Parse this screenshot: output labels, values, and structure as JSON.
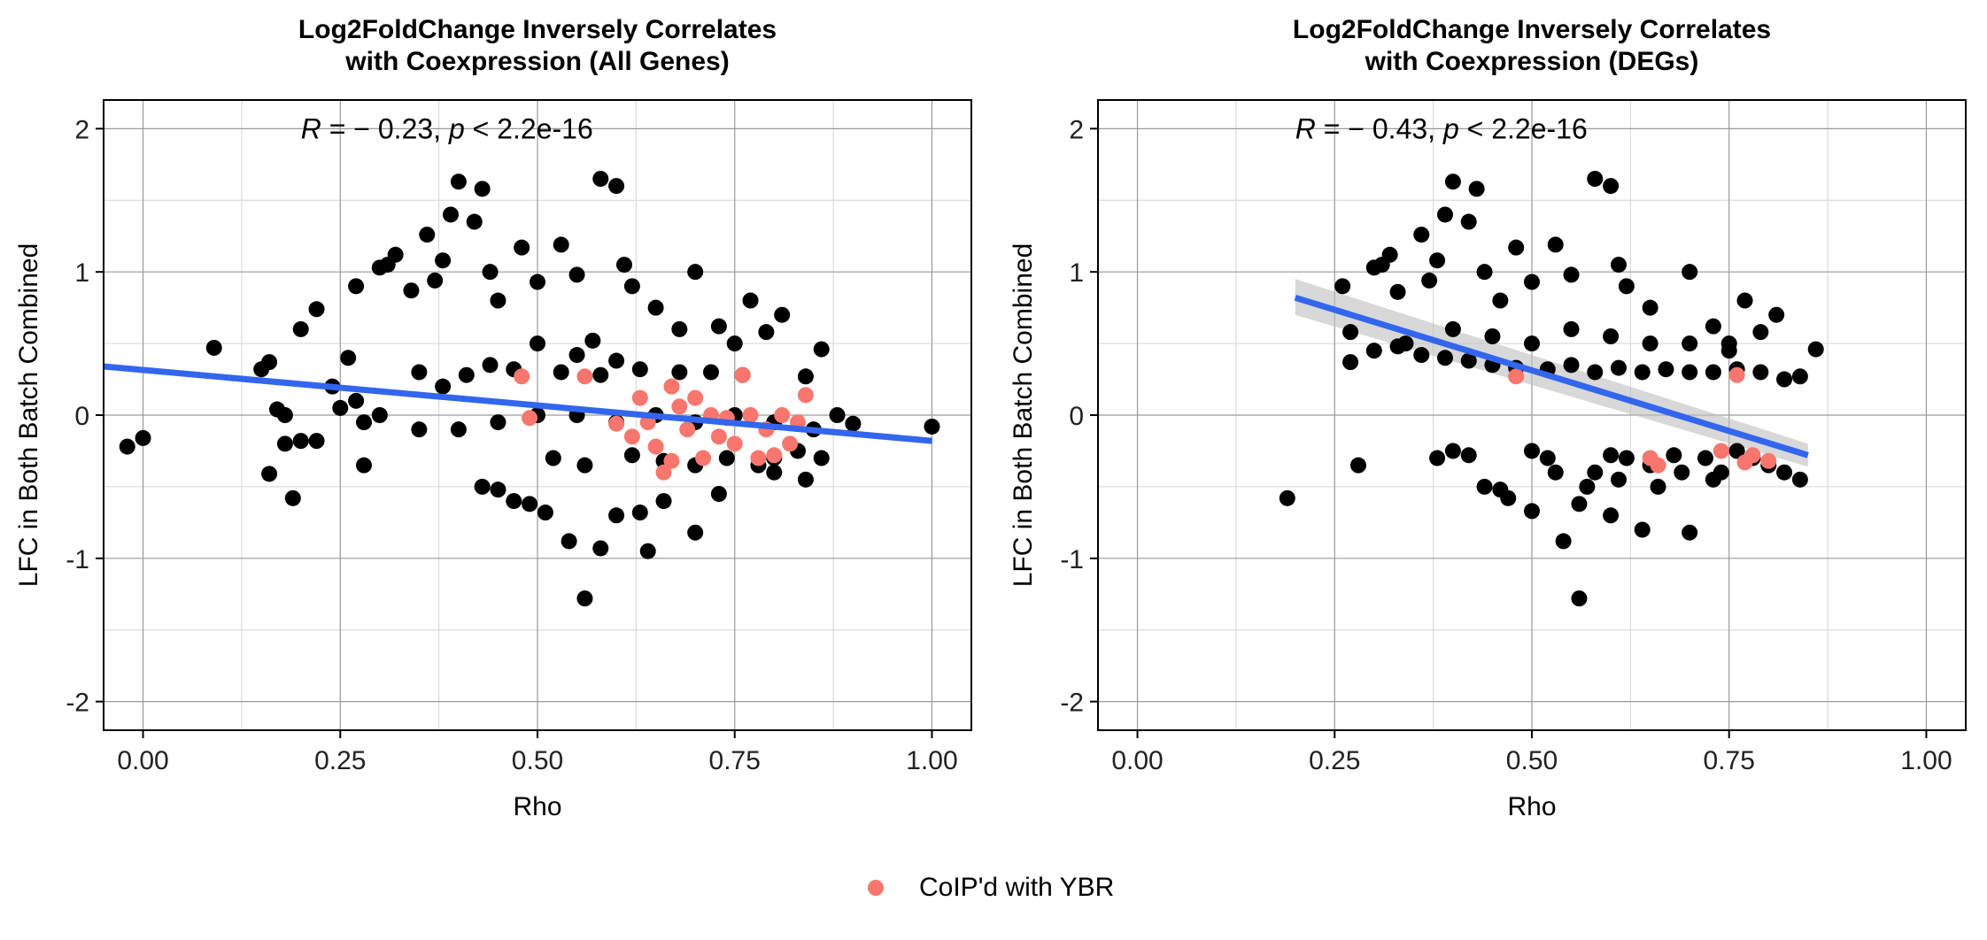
{
  "colors": {
    "point": "#000000",
    "highlight": "#F8766D",
    "fit_line": "#3366EE",
    "confidence_band": "#BEBEBE",
    "grid_major": "#9A9A9A",
    "grid_minor": "#D4D4D4"
  },
  "legend": {
    "label": "CoIP'd with YBR",
    "marker": "filled-circle"
  },
  "chart_data": [
    {
      "type": "scatter",
      "title_line1": "Log2FoldChange Inversely Correlates",
      "title_line2": "with Coexpression (All Genes)",
      "xlabel": "Rho",
      "ylabel": "LFC in Both Batch Combined",
      "xlim": [
        -0.05,
        1.05
      ],
      "ylim": [
        -2.2,
        2.2
      ],
      "x_ticks": [
        0.0,
        0.25,
        0.5,
        0.75,
        1.0
      ],
      "x_tick_labels": [
        "0.00",
        "0.25",
        "0.50",
        "0.75",
        "1.00"
      ],
      "y_ticks": [
        -2,
        -1,
        0,
        1,
        2
      ],
      "y_tick_labels": [
        "-2",
        "-1",
        "0",
        "1",
        "2"
      ],
      "grid": true,
      "annotation": {
        "r_symbol": "R",
        "r_text": " = − 0.23, ",
        "p_symbol": "p",
        "p_text": " < 2.2e-16",
        "x": 0.2,
        "y": 2.0
      },
      "fit_line": {
        "x": [
          -0.05,
          1.0
        ],
        "y": [
          0.34,
          -0.18
        ]
      },
      "confidence_band": null,
      "series": [
        {
          "name": "",
          "color": "#000000",
          "points": [
            [
              -0.02,
              -0.22
            ],
            [
              0.0,
              -0.16
            ],
            [
              0.09,
              0.47
            ],
            [
              0.15,
              0.32
            ],
            [
              0.16,
              0.37
            ],
            [
              0.17,
              0.04
            ],
            [
              0.18,
              0.0
            ],
            [
              0.18,
              -0.2
            ],
            [
              0.16,
              -0.41
            ],
            [
              0.19,
              -0.58
            ],
            [
              0.2,
              -0.18
            ],
            [
              0.2,
              0.6
            ],
            [
              0.22,
              0.74
            ],
            [
              0.22,
              -0.18
            ],
            [
              0.27,
              0.9
            ],
            [
              0.28,
              -0.35
            ],
            [
              0.3,
              1.03
            ],
            [
              0.31,
              1.05
            ],
            [
              0.32,
              1.12
            ],
            [
              0.34,
              0.87
            ],
            [
              0.36,
              1.26
            ],
            [
              0.37,
              0.94
            ],
            [
              0.38,
              1.08
            ],
            [
              0.39,
              1.4
            ],
            [
              0.4,
              1.63
            ],
            [
              0.42,
              1.35
            ],
            [
              0.43,
              1.58
            ],
            [
              0.44,
              1.0
            ],
            [
              0.45,
              0.8
            ],
            [
              0.48,
              1.17
            ],
            [
              0.5,
              0.93
            ],
            [
              0.53,
              1.19
            ],
            [
              0.55,
              0.98
            ],
            [
              0.57,
              0.52
            ],
            [
              0.58,
              1.65
            ],
            [
              0.6,
              1.6
            ],
            [
              0.61,
              1.05
            ],
            [
              0.62,
              0.9
            ],
            [
              0.65,
              0.75
            ],
            [
              0.68,
              0.6
            ],
            [
              0.7,
              1.0
            ],
            [
              0.73,
              0.62
            ],
            [
              0.75,
              0.5
            ],
            [
              0.77,
              0.8
            ],
            [
              0.79,
              0.58
            ],
            [
              0.81,
              0.7
            ],
            [
              0.84,
              0.27
            ],
            [
              0.86,
              0.46
            ],
            [
              0.88,
              0.0
            ],
            [
              0.9,
              -0.06
            ],
            [
              1.0,
              -0.08
            ],
            [
              0.43,
              -0.5
            ],
            [
              0.45,
              -0.52
            ],
            [
              0.47,
              -0.6
            ],
            [
              0.49,
              -0.62
            ],
            [
              0.51,
              -0.68
            ],
            [
              0.54,
              -0.88
            ],
            [
              0.56,
              -1.28
            ],
            [
              0.58,
              -0.93
            ],
            [
              0.6,
              -0.7
            ],
            [
              0.63,
              -0.68
            ],
            [
              0.64,
              -0.95
            ],
            [
              0.66,
              -0.6
            ],
            [
              0.7,
              -0.82
            ],
            [
              0.73,
              -0.55
            ],
            [
              0.8,
              -0.4
            ],
            [
              0.84,
              -0.45
            ],
            [
              0.86,
              -0.3
            ],
            [
              0.5,
              0.5
            ],
            [
              0.55,
              0.42
            ],
            [
              0.6,
              0.38
            ],
            [
              0.52,
              -0.3
            ],
            [
              0.56,
              -0.35
            ],
            [
              0.62,
              -0.28
            ],
            [
              0.66,
              -0.32
            ],
            [
              0.7,
              -0.35
            ],
            [
              0.74,
              -0.3
            ],
            [
              0.78,
              -0.35
            ],
            [
              0.8,
              -0.3
            ],
            [
              0.83,
              -0.25
            ],
            [
              0.85,
              -0.1
            ],
            [
              0.35,
              0.3
            ],
            [
              0.38,
              0.2
            ],
            [
              0.41,
              0.28
            ],
            [
              0.44,
              0.35
            ],
            [
              0.47,
              0.32
            ],
            [
              0.53,
              0.3
            ],
            [
              0.58,
              0.28
            ],
            [
              0.63,
              0.32
            ],
            [
              0.68,
              0.3
            ],
            [
              0.72,
              0.3
            ],
            [
              0.76,
              0.28
            ],
            [
              0.3,
              0.0
            ],
            [
              0.35,
              -0.1
            ],
            [
              0.4,
              -0.1
            ],
            [
              0.45,
              -0.05
            ],
            [
              0.5,
              0.0
            ],
            [
              0.55,
              0.0
            ],
            [
              0.6,
              -0.05
            ],
            [
              0.65,
              0.0
            ],
            [
              0.7,
              -0.05
            ],
            [
              0.75,
              0.0
            ],
            [
              0.8,
              -0.05
            ],
            [
              0.26,
              0.4
            ],
            [
              0.27,
              0.1
            ],
            [
              0.28,
              -0.05
            ],
            [
              0.25,
              0.05
            ],
            [
              0.24,
              0.2
            ]
          ]
        },
        {
          "name": "CoIP'd with YBR",
          "color": "#F8766D",
          "points": [
            [
              0.48,
              0.27
            ],
            [
              0.49,
              -0.02
            ],
            [
              0.56,
              0.27
            ],
            [
              0.6,
              -0.06
            ],
            [
              0.62,
              -0.15
            ],
            [
              0.63,
              0.12
            ],
            [
              0.64,
              -0.05
            ],
            [
              0.65,
              -0.22
            ],
            [
              0.66,
              -0.4
            ],
            [
              0.67,
              0.2
            ],
            [
              0.67,
              -0.32
            ],
            [
              0.68,
              0.06
            ],
            [
              0.69,
              -0.1
            ],
            [
              0.7,
              0.12
            ],
            [
              0.71,
              -0.3
            ],
            [
              0.72,
              0.0
            ],
            [
              0.73,
              -0.15
            ],
            [
              0.74,
              -0.02
            ],
            [
              0.75,
              -0.2
            ],
            [
              0.76,
              0.28
            ],
            [
              0.77,
              0.0
            ],
            [
              0.78,
              -0.3
            ],
            [
              0.79,
              -0.1
            ],
            [
              0.8,
              -0.28
            ],
            [
              0.81,
              0.0
            ],
            [
              0.82,
              -0.2
            ],
            [
              0.83,
              -0.05
            ],
            [
              0.84,
              0.14
            ]
          ]
        }
      ]
    },
    {
      "type": "scatter",
      "title_line1": "Log2FoldChange Inversely Correlates",
      "title_line2": "with Coexpression (DEGs)",
      "xlabel": "Rho",
      "ylabel": "LFC in Both Batch Combined",
      "xlim": [
        -0.05,
        1.05
      ],
      "ylim": [
        -2.2,
        2.2
      ],
      "x_ticks": [
        0.0,
        0.25,
        0.5,
        0.75,
        1.0
      ],
      "x_tick_labels": [
        "0.00",
        "0.25",
        "0.50",
        "0.75",
        "1.00"
      ],
      "y_ticks": [
        -2,
        -1,
        0,
        1,
        2
      ],
      "y_tick_labels": [
        "-2",
        "-1",
        "0",
        "1",
        "2"
      ],
      "grid": true,
      "annotation": {
        "r_symbol": "R",
        "r_text": " = − 0.43, ",
        "p_symbol": "p",
        "p_text": " < 2.2e-16",
        "x": 0.2,
        "y": 2.0
      },
      "fit_line": {
        "x": [
          0.2,
          0.85
        ],
        "y": [
          0.82,
          -0.28
        ]
      },
      "confidence_band": {
        "x": [
          0.2,
          0.85
        ],
        "upper": [
          0.95,
          -0.2
        ],
        "lower": [
          0.7,
          -0.36
        ]
      },
      "series": [
        {
          "name": "",
          "color": "#000000",
          "points": [
            [
              0.19,
              -0.58
            ],
            [
              0.26,
              0.9
            ],
            [
              0.27,
              0.58
            ],
            [
              0.27,
              0.37
            ],
            [
              0.28,
              -0.35
            ],
            [
              0.3,
              1.03
            ],
            [
              0.31,
              1.05
            ],
            [
              0.32,
              1.12
            ],
            [
              0.33,
              0.86
            ],
            [
              0.34,
              0.5
            ],
            [
              0.36,
              1.26
            ],
            [
              0.37,
              0.94
            ],
            [
              0.38,
              1.08
            ],
            [
              0.39,
              1.4
            ],
            [
              0.4,
              1.63
            ],
            [
              0.42,
              1.35
            ],
            [
              0.43,
              1.58
            ],
            [
              0.44,
              1.0
            ],
            [
              0.46,
              0.8
            ],
            [
              0.48,
              1.17
            ],
            [
              0.5,
              0.93
            ],
            [
              0.53,
              1.19
            ],
            [
              0.55,
              0.98
            ],
            [
              0.58,
              1.65
            ],
            [
              0.6,
              1.6
            ],
            [
              0.61,
              1.05
            ],
            [
              0.62,
              0.9
            ],
            [
              0.65,
              0.75
            ],
            [
              0.7,
              1.0
            ],
            [
              0.73,
              0.62
            ],
            [
              0.75,
              0.5
            ],
            [
              0.77,
              0.8
            ],
            [
              0.79,
              0.58
            ],
            [
              0.81,
              0.7
            ],
            [
              0.84,
              0.27
            ],
            [
              0.86,
              0.46
            ],
            [
              0.3,
              0.45
            ],
            [
              0.33,
              0.48
            ],
            [
              0.36,
              0.42
            ],
            [
              0.39,
              0.4
            ],
            [
              0.42,
              0.38
            ],
            [
              0.45,
              0.35
            ],
            [
              0.48,
              0.33
            ],
            [
              0.52,
              0.32
            ],
            [
              0.55,
              0.35
            ],
            [
              0.58,
              0.3
            ],
            [
              0.61,
              0.33
            ],
            [
              0.64,
              0.3
            ],
            [
              0.67,
              0.32
            ],
            [
              0.7,
              0.3
            ],
            [
              0.73,
              0.3
            ],
            [
              0.76,
              0.32
            ],
            [
              0.79,
              0.3
            ],
            [
              0.82,
              0.25
            ],
            [
              0.4,
              0.6
            ],
            [
              0.45,
              0.55
            ],
            [
              0.5,
              0.5
            ],
            [
              0.55,
              0.6
            ],
            [
              0.6,
              0.55
            ],
            [
              0.65,
              0.5
            ],
            [
              0.7,
              0.5
            ],
            [
              0.75,
              0.45
            ],
            [
              0.38,
              -0.3
            ],
            [
              0.4,
              -0.25
            ],
            [
              0.42,
              -0.28
            ],
            [
              0.44,
              -0.5
            ],
            [
              0.46,
              -0.52
            ],
            [
              0.47,
              -0.58
            ],
            [
              0.5,
              -0.67
            ],
            [
              0.5,
              -0.25
            ],
            [
              0.52,
              -0.3
            ],
            [
              0.54,
              -0.88
            ],
            [
              0.56,
              -1.28
            ],
            [
              0.56,
              -0.62
            ],
            [
              0.58,
              -0.4
            ],
            [
              0.6,
              -0.7
            ],
            [
              0.6,
              -0.28
            ],
            [
              0.62,
              -0.3
            ],
            [
              0.64,
              -0.8
            ],
            [
              0.66,
              -0.5
            ],
            [
              0.68,
              -0.28
            ],
            [
              0.7,
              -0.82
            ],
            [
              0.72,
              -0.3
            ],
            [
              0.74,
              -0.4
            ],
            [
              0.76,
              -0.25
            ],
            [
              0.78,
              -0.3
            ],
            [
              0.8,
              -0.35
            ],
            [
              0.82,
              -0.4
            ],
            [
              0.84,
              -0.45
            ],
            [
              0.53,
              -0.4
            ],
            [
              0.57,
              -0.5
            ],
            [
              0.61,
              -0.45
            ],
            [
              0.65,
              -0.35
            ],
            [
              0.69,
              -0.4
            ],
            [
              0.73,
              -0.45
            ]
          ]
        },
        {
          "name": "CoIP'd with YBR",
          "color": "#F8766D",
          "points": [
            [
              0.48,
              0.27
            ],
            [
              0.65,
              -0.3
            ],
            [
              0.66,
              -0.35
            ],
            [
              0.74,
              -0.25
            ],
            [
              0.76,
              0.28
            ],
            [
              0.77,
              -0.33
            ],
            [
              0.78,
              -0.28
            ],
            [
              0.8,
              -0.32
            ]
          ]
        }
      ]
    }
  ]
}
